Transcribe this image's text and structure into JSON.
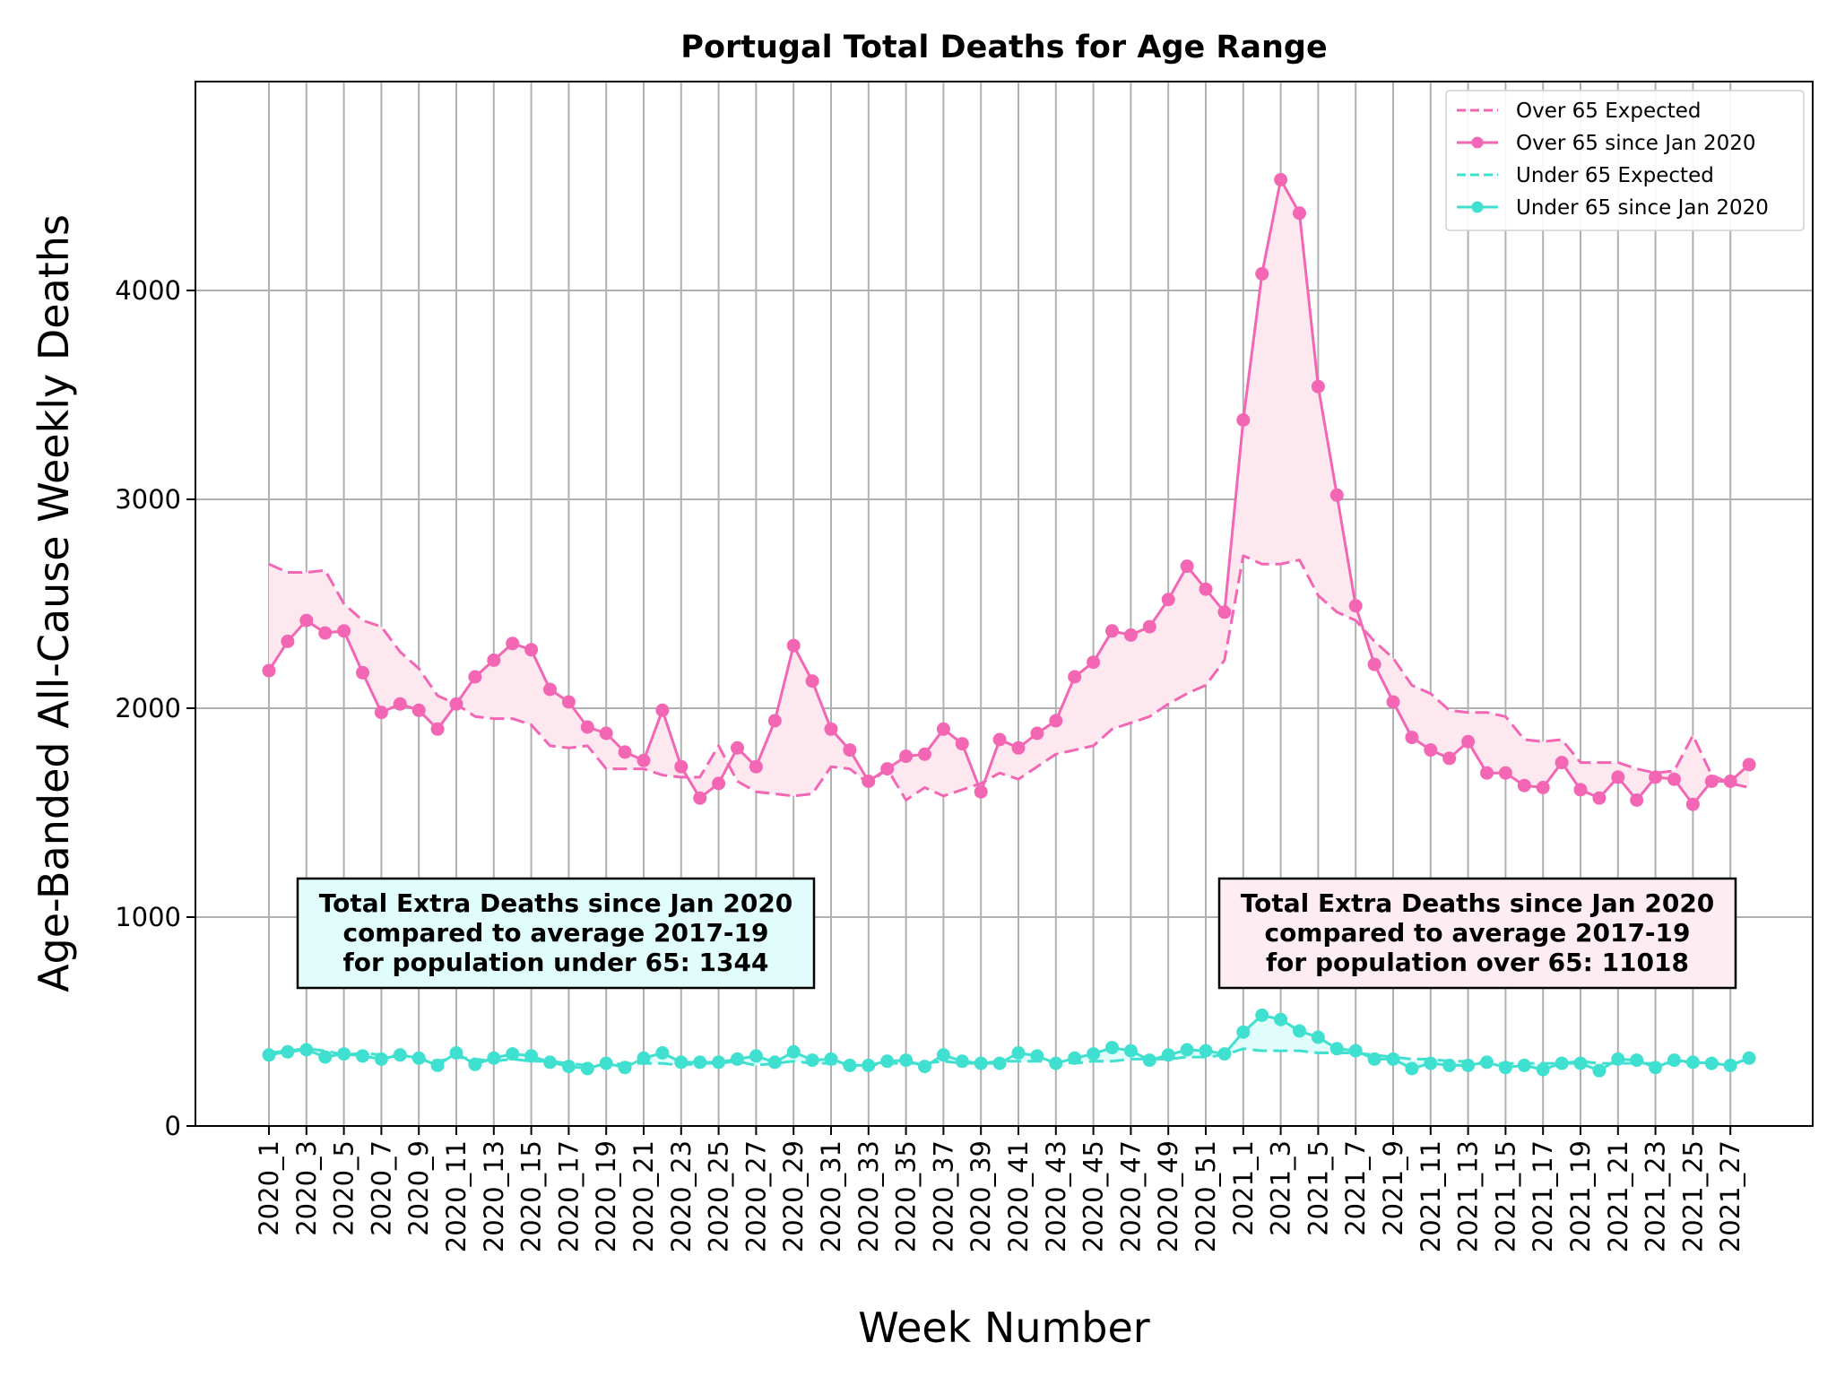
{
  "chart_data": {
    "type": "line",
    "title": "Portugal Total Deaths for Age Range",
    "xlabel": "Week Number",
    "ylabel": "Age-Banded All-Cause Weekly Deaths",
    "ylim": [
      0,
      5000
    ],
    "yticks": [
      0,
      1000,
      2000,
      3000,
      4000
    ],
    "grid": true,
    "legend_position": "top-right",
    "colors": {
      "over65": "#f266b4",
      "under65": "#40e0d0",
      "over65_fill": "#fde8f0",
      "under65_fill": "#e0fdfb"
    },
    "x": [
      "2020_1",
      "2020_2",
      "2020_3",
      "2020_4",
      "2020_5",
      "2020_6",
      "2020_7",
      "2020_8",
      "2020_9",
      "2020_10",
      "2020_11",
      "2020_12",
      "2020_13",
      "2020_14",
      "2020_15",
      "2020_16",
      "2020_17",
      "2020_18",
      "2020_19",
      "2020_20",
      "2020_21",
      "2020_22",
      "2020_23",
      "2020_24",
      "2020_25",
      "2020_26",
      "2020_27",
      "2020_28",
      "2020_29",
      "2020_30",
      "2020_31",
      "2020_32",
      "2020_33",
      "2020_34",
      "2020_35",
      "2020_36",
      "2020_37",
      "2020_38",
      "2020_39",
      "2020_40",
      "2020_41",
      "2020_42",
      "2020_43",
      "2020_44",
      "2020_45",
      "2020_46",
      "2020_47",
      "2020_48",
      "2020_49",
      "2020_50",
      "2020_51",
      "2020_52",
      "2021_1",
      "2021_2",
      "2021_3",
      "2021_4",
      "2021_5",
      "2021_6",
      "2021_7",
      "2021_8",
      "2021_9",
      "2021_10",
      "2021_11",
      "2021_12",
      "2021_13",
      "2021_14",
      "2021_15",
      "2021_16",
      "2021_17",
      "2021_18",
      "2021_19",
      "2021_20",
      "2021_21",
      "2021_22",
      "2021_23",
      "2021_24",
      "2021_25",
      "2021_26",
      "2021_27",
      "2021_28"
    ],
    "tick_labels": [
      "2020_1",
      "2020_3",
      "2020_5",
      "2020_7",
      "2020_9",
      "2020_11",
      "2020_13",
      "2020_15",
      "2020_17",
      "2020_19",
      "2020_21",
      "2020_23",
      "2020_25",
      "2020_27",
      "2020_29",
      "2020_31",
      "2020_33",
      "2020_35",
      "2020_37",
      "2020_39",
      "2020_41",
      "2020_43",
      "2020_45",
      "2020_47",
      "2020_49",
      "2020_51",
      "2021_1",
      "2021_3",
      "2021_5",
      "2021_7",
      "2021_9",
      "2021_11",
      "2021_13",
      "2021_15",
      "2021_17",
      "2021_19",
      "2021_21",
      "2021_23",
      "2021_25",
      "2021_27"
    ],
    "series": [
      {
        "name": "Over 65 Expected",
        "style": "dashed",
        "color": "#f266b4",
        "values": [
          2690,
          2650,
          2650,
          2660,
          2500,
          2420,
          2390,
          2270,
          2190,
          2060,
          2020,
          1960,
          1950,
          1950,
          1920,
          1820,
          1810,
          1820,
          1710,
          1710,
          1710,
          1680,
          1670,
          1670,
          1820,
          1650,
          1600,
          1590,
          1580,
          1590,
          1720,
          1710,
          1640,
          1710,
          1560,
          1620,
          1580,
          1610,
          1640,
          1690,
          1660,
          1720,
          1780,
          1800,
          1820,
          1900,
          1930,
          1960,
          2020,
          2070,
          2110,
          2230,
          2730,
          2690,
          2690,
          2710,
          2540,
          2460,
          2420,
          2320,
          2240,
          2110,
          2070,
          1990,
          1980,
          1980,
          1960,
          1850,
          1840,
          1850,
          1740,
          1740,
          1740,
          1710,
          1690,
          1700,
          1870,
          1680,
          1640,
          1620
        ]
      },
      {
        "name": "Over 65 since Jan 2020",
        "style": "solid-marker",
        "color": "#f266b4",
        "values": [
          2180,
          2320,
          2420,
          2360,
          2370,
          2170,
          1980,
          2020,
          1990,
          1900,
          2020,
          2150,
          2230,
          2310,
          2280,
          2090,
          2030,
          1910,
          1880,
          1790,
          1750,
          1990,
          1720,
          1570,
          1640,
          1810,
          1720,
          1940,
          2300,
          2130,
          1900,
          1800,
          1650,
          1710,
          1770,
          1780,
          1900,
          1830,
          1600,
          1850,
          1810,
          1880,
          1940,
          2150,
          2220,
          2370,
          2350,
          2390,
          2520,
          2680,
          2570,
          2460,
          3380,
          4080,
          4530,
          4370,
          3540,
          3020,
          2490,
          2210,
          2030,
          1860,
          1800,
          1760,
          1840,
          1690,
          1690,
          1630,
          1620,
          1740,
          1610,
          1570,
          1670,
          1560,
          1670,
          1660,
          1540,
          1650,
          1650,
          1730
        ]
      },
      {
        "name": "Under 65 Expected",
        "style": "dashed",
        "color": "#40e0d0",
        "values": [
          350,
          360,
          370,
          360,
          340,
          350,
          340,
          330,
          320,
          310,
          330,
          320,
          310,
          320,
          310,
          310,
          300,
          290,
          290,
          300,
          300,
          300,
          290,
          300,
          300,
          310,
          290,
          300,
          310,
          300,
          300,
          290,
          290,
          300,
          300,
          300,
          310,
          300,
          300,
          310,
          310,
          310,
          310,
          300,
          310,
          310,
          320,
          320,
          320,
          330,
          330,
          340,
          370,
          360,
          360,
          360,
          350,
          350,
          350,
          340,
          330,
          320,
          320,
          310,
          310,
          300,
          300,
          300,
          300,
          300,
          310,
          300,
          300,
          300,
          300,
          300,
          310,
          300,
          300,
          310
        ]
      },
      {
        "name": "Under 65 since Jan 2020",
        "style": "solid-marker",
        "color": "#40e0d0",
        "values": [
          340,
          355,
          365,
          330,
          345,
          335,
          320,
          340,
          325,
          290,
          350,
          295,
          325,
          345,
          335,
          305,
          285,
          275,
          300,
          280,
          325,
          350,
          305,
          305,
          305,
          320,
          335,
          305,
          355,
          315,
          320,
          290,
          290,
          310,
          315,
          285,
          340,
          310,
          300,
          300,
          350,
          335,
          300,
          325,
          345,
          375,
          360,
          315,
          340,
          365,
          360,
          345,
          450,
          530,
          510,
          455,
          425,
          370,
          360,
          320,
          320,
          275,
          300,
          290,
          290,
          305,
          280,
          290,
          270,
          300,
          300,
          265,
          320,
          315,
          280,
          315,
          305,
          300,
          290,
          325
        ]
      }
    ],
    "annotations": [
      {
        "lines": [
          "Total Extra Deaths since Jan 2020",
          "compared to average 2017-19",
          "for population under 65: 1344"
        ],
        "bg": "#e0fdfb"
      },
      {
        "lines": [
          "Total Extra Deaths since Jan 2020",
          "compared to average 2017-19",
          "for population over 65: 11018"
        ],
        "bg": "#fdedf3"
      }
    ]
  }
}
